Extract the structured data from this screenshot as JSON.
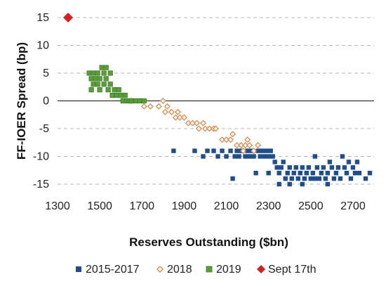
{
  "chart_data": {
    "type": "scatter",
    "title": "",
    "xlabel": "Reserves Outstanding ($bn)",
    "ylabel": "FF-IOER Spread (bp)",
    "xlim": [
      1300,
      2800
    ],
    "ylim": [
      -15,
      15
    ],
    "x_ticks": [
      1300,
      1500,
      1700,
      1900,
      2100,
      2300,
      2500,
      2700
    ],
    "x_tick_labels": [
      "1300",
      "1500",
      "1700",
      "1900",
      "2100",
      "2300",
      "2500",
      "2700"
    ],
    "y_ticks": [
      15,
      10,
      5,
      0,
      -5,
      -10,
      -15
    ],
    "y_tick_labels": [
      "15",
      "10",
      "5",
      "0",
      "-5",
      "-10",
      "-15"
    ],
    "grid": "horizontal dashed",
    "legend_position": "bottom",
    "series": [
      {
        "name": "2015-2017",
        "color": "#1f4e8c",
        "marker": "square",
        "points": [
          [
            1850,
            -9
          ],
          [
            1950,
            -9
          ],
          [
            1990,
            -10
          ],
          [
            2010,
            -9
          ],
          [
            2040,
            -9
          ],
          [
            2060,
            -10
          ],
          [
            2080,
            -9
          ],
          [
            2100,
            -10
          ],
          [
            2120,
            -9
          ],
          [
            2130,
            -14
          ],
          [
            2140,
            -10
          ],
          [
            2150,
            -9
          ],
          [
            2160,
            -10
          ],
          [
            2170,
            -9
          ],
          [
            2190,
            -10
          ],
          [
            2200,
            -9
          ],
          [
            2210,
            -10
          ],
          [
            2220,
            -9
          ],
          [
            2230,
            -10
          ],
          [
            2250,
            -9
          ],
          [
            2260,
            -10
          ],
          [
            2270,
            -9
          ],
          [
            2280,
            -10
          ],
          [
            2290,
            -9
          ],
          [
            2300,
            -10
          ],
          [
            2310,
            -9
          ],
          [
            2320,
            -10
          ],
          [
            2330,
            -11
          ],
          [
            2340,
            -12
          ],
          [
            2350,
            -13
          ],
          [
            2360,
            -12
          ],
          [
            2370,
            -11
          ],
          [
            2380,
            -14
          ],
          [
            2390,
            -13
          ],
          [
            2400,
            -12
          ],
          [
            2410,
            -14
          ],
          [
            2420,
            -13
          ],
          [
            2430,
            -12
          ],
          [
            2440,
            -14
          ],
          [
            2450,
            -13
          ],
          [
            2460,
            -12
          ],
          [
            2470,
            -14
          ],
          [
            2480,
            -13
          ],
          [
            2490,
            -12
          ],
          [
            2500,
            -14
          ],
          [
            2510,
            -13
          ],
          [
            2520,
            -10
          ],
          [
            2530,
            -12
          ],
          [
            2540,
            -14
          ],
          [
            2550,
            -13
          ],
          [
            2560,
            -12
          ],
          [
            2570,
            -14
          ],
          [
            2580,
            -13
          ],
          [
            2590,
            -11
          ],
          [
            2600,
            -12
          ],
          [
            2610,
            -14
          ],
          [
            2620,
            -13
          ],
          [
            2630,
            -12
          ],
          [
            2640,
            -14
          ],
          [
            2650,
            -10
          ],
          [
            2660,
            -12
          ],
          [
            2670,
            -13
          ],
          [
            2680,
            -11
          ],
          [
            2690,
            -14
          ],
          [
            2700,
            -12
          ],
          [
            2710,
            -13
          ],
          [
            2720,
            -11
          ],
          [
            2730,
            -13
          ],
          [
            2760,
            -14
          ],
          [
            2780,
            -13
          ],
          [
            2240,
            -13
          ],
          [
            2300,
            -13
          ],
          [
            2350,
            -15
          ],
          [
            2400,
            -15
          ],
          [
            2460,
            -15
          ],
          [
            2520,
            -14
          ],
          [
            2580,
            -15
          ]
        ]
      },
      {
        "name": "2018",
        "color": "#e08a4c",
        "marker": "diamond",
        "points": [
          [
            1650,
            0
          ],
          [
            1710,
            -1
          ],
          [
            1740,
            -1
          ],
          [
            1780,
            -1
          ],
          [
            1800,
            0
          ],
          [
            1810,
            -2
          ],
          [
            1820,
            -1
          ],
          [
            1840,
            -2
          ],
          [
            1860,
            -3
          ],
          [
            1870,
            -2
          ],
          [
            1880,
            -3
          ],
          [
            1900,
            -3
          ],
          [
            1920,
            -4
          ],
          [
            1940,
            -4
          ],
          [
            1960,
            -4
          ],
          [
            1970,
            -5
          ],
          [
            1990,
            -4
          ],
          [
            2000,
            -5
          ],
          [
            2020,
            -5
          ],
          [
            2040,
            -5
          ],
          [
            2050,
            -5
          ],
          [
            2080,
            -7
          ],
          [
            2100,
            -7
          ],
          [
            2120,
            -7
          ],
          [
            2130,
            -6
          ],
          [
            2150,
            -8
          ],
          [
            2170,
            -8
          ],
          [
            2190,
            -8
          ],
          [
            2210,
            -8
          ],
          [
            2230,
            -9
          ],
          [
            2250,
            -8
          ],
          [
            2180,
            -9
          ],
          [
            2200,
            -7
          ]
        ]
      },
      {
        "name": "2019",
        "color": "#5a9e3a",
        "marker": "square-pattern",
        "points": [
          [
            1450,
            5
          ],
          [
            1460,
            4
          ],
          [
            1470,
            3
          ],
          [
            1470,
            5
          ],
          [
            1480,
            4
          ],
          [
            1490,
            3
          ],
          [
            1490,
            5
          ],
          [
            1500,
            4
          ],
          [
            1500,
            2
          ],
          [
            1510,
            6
          ],
          [
            1520,
            5
          ],
          [
            1520,
            3
          ],
          [
            1530,
            4
          ],
          [
            1530,
            6
          ],
          [
            1540,
            2
          ],
          [
            1550,
            3
          ],
          [
            1550,
            5
          ],
          [
            1560,
            1
          ],
          [
            1570,
            2
          ],
          [
            1580,
            1
          ],
          [
            1590,
            2
          ],
          [
            1600,
            1
          ],
          [
            1610,
            0
          ],
          [
            1620,
            1
          ],
          [
            1630,
            0
          ],
          [
            1640,
            0
          ],
          [
            1650,
            0
          ],
          [
            1670,
            0
          ],
          [
            1690,
            0
          ],
          [
            1710,
            0
          ],
          [
            1460,
            2
          ]
        ]
      },
      {
        "name": "Sept 17th",
        "color": "#d42020",
        "marker": "diamond",
        "points": [
          [
            1350,
            15
          ]
        ]
      }
    ]
  }
}
